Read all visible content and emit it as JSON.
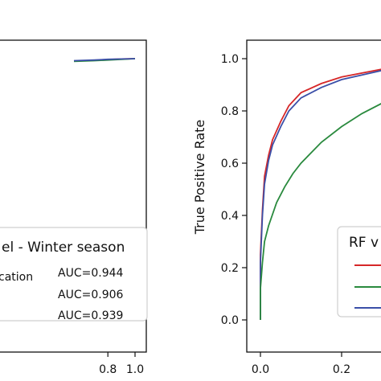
{
  "chart_data": [
    {
      "type": "line",
      "title": "",
      "xlabel": "",
      "ylabel": "",
      "xlim": [
        0.0,
        1.0
      ],
      "ylim": [
        0.0,
        1.0
      ],
      "x_ticks": [
        0.8,
        1.0
      ],
      "x_tick_labels": [
        "0.8",
        "1.0"
      ],
      "legend": {
        "placement": "lower-right",
        "title": "el - Winter season",
        "entries": [
          {
            "label": "cation",
            "auc": "AUC=0.944",
            "color": "#d62728"
          },
          {
            "label": "",
            "auc": "AUC=0.906",
            "color": "#2a8a3e"
          },
          {
            "label": "",
            "auc": "AUC=0.939",
            "color": "#3b4fa8"
          }
        ]
      },
      "series": [
        {
          "color": "#d62728",
          "x": [
            0.55,
            0.7,
            0.8,
            0.9,
            1.0
          ],
          "y": [
            0.993,
            0.995,
            0.997,
            0.999,
            1.0
          ]
        },
        {
          "color": "#2a8a3e",
          "x": [
            0.55,
            0.7,
            0.8,
            0.9,
            1.0
          ],
          "y": [
            0.992,
            0.994,
            0.996,
            0.998,
            1.0
          ]
        },
        {
          "color": "#3b4fa8",
          "x": [
            0.55,
            0.7,
            0.8,
            0.9,
            1.0
          ],
          "y": [
            0.994,
            0.996,
            0.998,
            0.999,
            1.0
          ]
        }
      ]
    },
    {
      "type": "line",
      "title": "",
      "xlabel": "",
      "ylabel": "True Positive Rate",
      "xlim": [
        -0.05,
        1.05
      ],
      "ylim": [
        -0.05,
        1.05
      ],
      "x_ticks": [
        0.0,
        0.2
      ],
      "x_tick_labels": [
        "0.0",
        "0.2"
      ],
      "y_ticks": [
        0.0,
        0.2,
        0.4,
        0.6,
        0.8,
        1.0
      ],
      "y_tick_labels": [
        "0.0",
        "0.2",
        "0.4",
        "0.6",
        "0.8",
        "1.0"
      ],
      "legend": {
        "placement": "lower-right",
        "title": "RF v",
        "entries": [
          {
            "color": "#d62728"
          },
          {
            "color": "#2a8a3e"
          },
          {
            "color": "#3b4fa8"
          }
        ]
      },
      "series": [
        {
          "color": "#d62728",
          "x": [
            0.0,
            0.0,
            0.005,
            0.01,
            0.02,
            0.03,
            0.05,
            0.07,
            0.1,
            0.15,
            0.2,
            0.3,
            0.4,
            0.5
          ],
          "y": [
            0.0,
            0.25,
            0.42,
            0.55,
            0.63,
            0.69,
            0.76,
            0.82,
            0.87,
            0.905,
            0.93,
            0.96,
            0.98,
            0.99
          ]
        },
        {
          "color": "#3b4fa8",
          "x": [
            0.0,
            0.0,
            0.005,
            0.01,
            0.02,
            0.03,
            0.05,
            0.07,
            0.1,
            0.15,
            0.2,
            0.3,
            0.4,
            0.5
          ],
          "y": [
            0.0,
            0.22,
            0.4,
            0.52,
            0.61,
            0.67,
            0.74,
            0.8,
            0.85,
            0.89,
            0.92,
            0.955,
            0.975,
            0.99
          ]
        },
        {
          "color": "#2a8a3e",
          "x": [
            0.0,
            0.0,
            0.005,
            0.01,
            0.02,
            0.04,
            0.06,
            0.08,
            0.1,
            0.15,
            0.2,
            0.25,
            0.3,
            0.4,
            0.5
          ],
          "y": [
            0.0,
            0.12,
            0.22,
            0.3,
            0.36,
            0.45,
            0.51,
            0.56,
            0.6,
            0.68,
            0.74,
            0.79,
            0.83,
            0.88,
            0.92
          ]
        }
      ]
    }
  ]
}
